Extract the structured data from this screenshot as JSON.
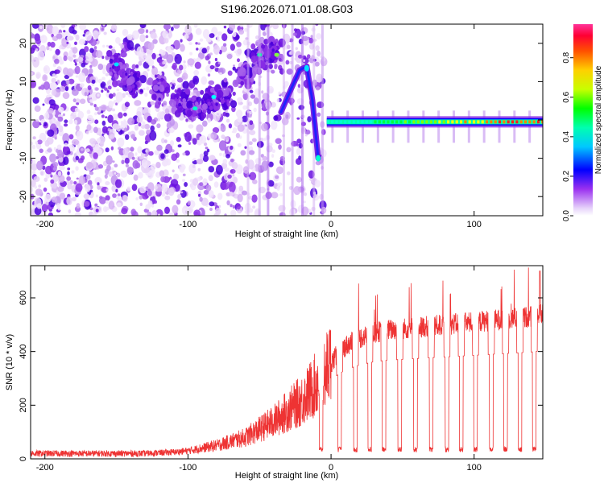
{
  "title": "S196.2026.071.01.08.G03",
  "chart_data": [
    {
      "type": "heatmap",
      "xlabel": "Height of straight line (km)",
      "ylabel": "Frequency (Hz)",
      "xlim": [
        -210,
        148
      ],
      "ylim": [
        -25,
        25
      ],
      "x_ticks": [
        -200,
        -100,
        0,
        100
      ],
      "y_ticks": [
        -20,
        -10,
        0,
        10,
        20
      ],
      "colorbar": {
        "label": "Normalized spectral amplitude",
        "range": [
          0,
          0.97
        ],
        "ticks": [
          0.0,
          0.2,
          0.4,
          0.6,
          0.8
        ],
        "colormap": "rainbow",
        "colors": [
          "#ffffff",
          "#c8a0f0",
          "#7a00f0",
          "#0000ff",
          "#00ffff",
          "#00ff00",
          "#ffff00",
          "#ff8000",
          "#ff0000",
          "#ff33aa"
        ]
      },
      "features": {
        "carrier_track": {
          "x_start": -3,
          "x_end": 148,
          "frequency": -0.5,
          "amplitude_range": [
            0.25,
            0.85
          ]
        },
        "arc": {
          "x": [
            -35,
            -28,
            -22,
            -17,
            -13,
            -9
          ],
          "frequency": [
            2,
            8,
            13,
            14,
            5,
            -10
          ]
        },
        "scatter_region": {
          "x_range": [
            -210,
            -5
          ],
          "frequency_range": [
            -25,
            25
          ]
        }
      }
    },
    {
      "type": "line",
      "xlabel": "Height of straight line (km)",
      "ylabel": "SNR (10 * v/v)",
      "xlim": [
        -210,
        148
      ],
      "ylim": [
        0,
        720
      ],
      "x_ticks": [
        -200,
        -100,
        0,
        100
      ],
      "y_ticks": [
        0,
        200,
        400,
        600
      ],
      "series_color": "#ee3333",
      "envelope": {
        "x": [
          -210,
          -130,
          -110,
          -100,
          -80,
          -60,
          -50,
          -40,
          -30,
          -20,
          -10,
          -5,
          0,
          10,
          20,
          30,
          40,
          60,
          80,
          100,
          120,
          140,
          148
        ],
        "y": [
          20,
          20,
          25,
          30,
          50,
          80,
          110,
          140,
          180,
          220,
          280,
          320,
          360,
          420,
          450,
          470,
          480,
          490,
          500,
          510,
          520,
          530,
          540
        ]
      },
      "dropouts": {
        "x": [
          -7,
          6,
          17,
          27,
          37,
          48,
          59,
          70,
          81,
          91,
          101,
          112,
          122,
          132,
          142
        ],
        "y": 25
      },
      "max_point": {
        "x": 146,
        "y": 700
      }
    }
  ]
}
